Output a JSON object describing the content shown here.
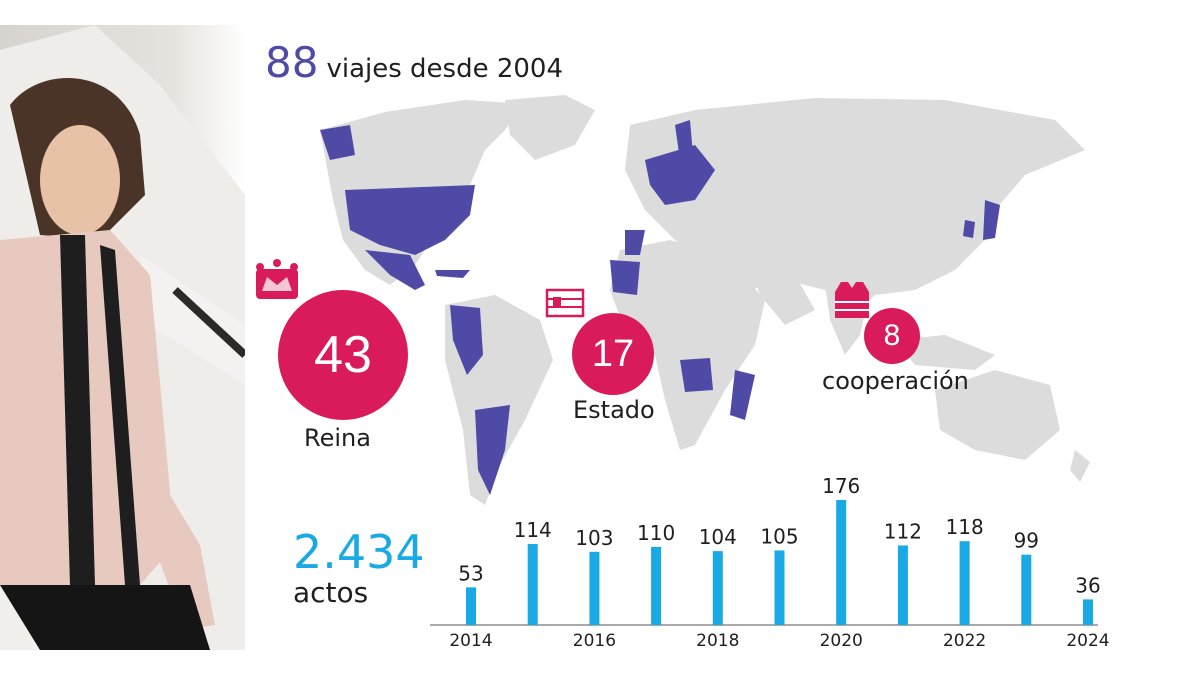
{
  "headline": {
    "number": "88",
    "text": "viajes desde 2004"
  },
  "categories": [
    {
      "value": "43",
      "label": "Reina",
      "icon": "crown-icon"
    },
    {
      "value": "17",
      "label": "Estado",
      "icon": "flag-icon"
    },
    {
      "value": "8",
      "label": "cooperación",
      "icon": "vest-icon"
    }
  ],
  "total": {
    "value": "2.434",
    "label": "actos"
  },
  "colors": {
    "accent_purple": "#4f4aa6",
    "accent_magenta": "#d91b5c",
    "accent_blue": "#19a9e4",
    "map_gray": "#dcdcdc"
  },
  "chart_data": {
    "type": "bar",
    "categories": [
      "2014",
      "2015",
      "2016",
      "2017",
      "2018",
      "2019",
      "2020",
      "2021",
      "2022",
      "2023",
      "2024"
    ],
    "values": [
      53,
      114,
      103,
      110,
      104,
      105,
      176,
      112,
      118,
      99,
      36
    ],
    "tick_labels": [
      "2014",
      "",
      "2016",
      "",
      "2018",
      "",
      "2020",
      "",
      "2022",
      "",
      "2024"
    ],
    "title": "",
    "xlabel": "",
    "ylabel": "",
    "ylim": [
      0,
      176
    ],
    "grid": false,
    "color": "#19a9e4"
  }
}
